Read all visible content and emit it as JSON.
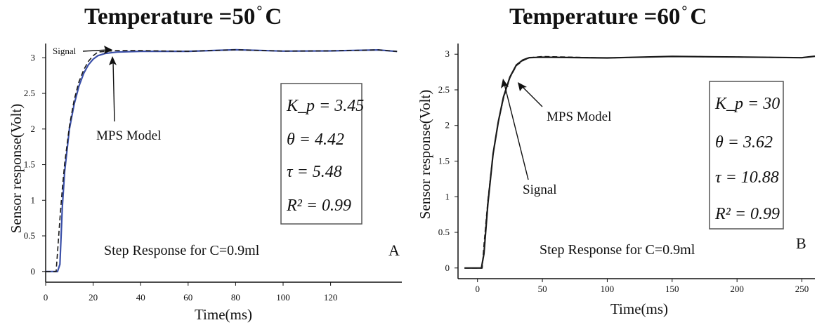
{
  "chart_data": [
    {
      "type": "line",
      "panel": "A",
      "title": "Temperature =50°C",
      "title_main": "Temperature =50",
      "title_unit": "C",
      "xlabel": "Time(ms)",
      "ylabel": "Sensor response(Volt)",
      "xlim": [
        0,
        150
      ],
      "ylim": [
        -0.15,
        3.2
      ],
      "x_ticks": [
        0,
        20,
        40,
        60,
        80,
        100,
        120
      ],
      "y_ticks": [
        0,
        0.5,
        1,
        1.5,
        2,
        2.5,
        3
      ],
      "x_tick_labels": [
        "0",
        "20",
        "40",
        "60",
        "80",
        "100",
        "120"
      ],
      "y_tick_labels": [
        "0",
        "0.5",
        "1",
        "1.5",
        "2",
        "2.5",
        "3"
      ],
      "caption": "Step Response for C=0.9ml",
      "panel_label": "A",
      "params": {
        "Kp": "3.45",
        "theta": "4.42",
        "tau": "5.48",
        "R2": "0.99",
        "lines": [
          "K_p = 3.45",
          "θ = 4.42",
          "τ = 5.48",
          "R² = 0.99"
        ]
      },
      "annotations": {
        "signal": "Signal",
        "model": "MPS Model"
      },
      "series": [
        {
          "name": "Signal",
          "x": [
            0,
            4,
            5,
            6,
            7,
            8,
            10,
            12,
            14,
            16,
            18,
            20,
            22,
            25,
            30,
            40,
            60,
            80,
            100,
            120,
            140,
            148
          ],
          "y": [
            0,
            0,
            0,
            0.1,
            0.9,
            1.4,
            2.0,
            2.35,
            2.6,
            2.78,
            2.9,
            2.98,
            3.03,
            3.06,
            3.08,
            3.09,
            3.1,
            3.1,
            3.1,
            3.1,
            3.1,
            3.1
          ]
        },
        {
          "name": "MPS Model",
          "x": [
            0,
            4.42,
            5,
            6,
            7,
            8,
            10,
            12,
            14,
            16,
            18,
            20,
            22,
            25,
            30,
            40,
            60,
            80,
            100,
            120,
            140,
            148
          ],
          "y": [
            0,
            0,
            0.27,
            0.74,
            1.16,
            1.51,
            2.04,
            2.41,
            2.66,
            2.83,
            2.95,
            3.03,
            3.08,
            3.09,
            3.1,
            3.1,
            3.1,
            3.1,
            3.1,
            3.1,
            3.1,
            3.1
          ]
        }
      ]
    },
    {
      "type": "line",
      "panel": "B",
      "title": "Temperature =60°C",
      "title_main": "Temperature =60",
      "title_unit": "C",
      "xlabel": "Time(ms)",
      "ylabel": "Sensor response(Volt)",
      "xlim": [
        -15,
        260
      ],
      "ylim": [
        -0.15,
        3.15
      ],
      "x_ticks": [
        0,
        50,
        100,
        150,
        200,
        250
      ],
      "y_ticks": [
        0,
        0.5,
        1,
        1.5,
        2,
        2.5,
        3
      ],
      "x_tick_labels": [
        "0",
        "50",
        "100",
        "150",
        "200",
        "250"
      ],
      "y_tick_labels": [
        "0",
        "0.5",
        "1",
        "1.5",
        "2",
        "2.5",
        "3"
      ],
      "caption": "Step Response for C=0.9ml",
      "panel_label": "B",
      "params": {
        "Kp": "30",
        "theta": "3.62",
        "tau": "10.88",
        "R2": "0.99",
        "lines": [
          "K_p = 30",
          "θ = 3.62",
          "τ = 10.88",
          "R² = 0.99"
        ]
      },
      "annotations": {
        "signal": "Signal",
        "model": "MPS Model"
      },
      "series": [
        {
          "name": "Signal",
          "x": [
            -10,
            0,
            3,
            5,
            8,
            12,
            16,
            20,
            25,
            30,
            35,
            40,
            50,
            100,
            150,
            200,
            250,
            260
          ],
          "y": [
            0,
            0,
            0,
            0.2,
            0.9,
            1.6,
            2.05,
            2.4,
            2.68,
            2.85,
            2.93,
            2.95,
            2.95,
            2.96,
            2.96,
            2.96,
            2.96,
            2.96
          ]
        },
        {
          "name": "MPS Model",
          "x": [
            -10,
            0,
            3.62,
            5,
            8,
            12,
            16,
            20,
            25,
            30,
            35,
            40,
            50,
            100,
            150,
            200,
            250,
            260
          ],
          "y": [
            0,
            0,
            0,
            0.32,
            0.95,
            1.6,
            2.05,
            2.38,
            2.67,
            2.84,
            2.92,
            2.95,
            2.96,
            2.96,
            2.96,
            2.96,
            2.96,
            2.96
          ]
        }
      ]
    }
  ]
}
